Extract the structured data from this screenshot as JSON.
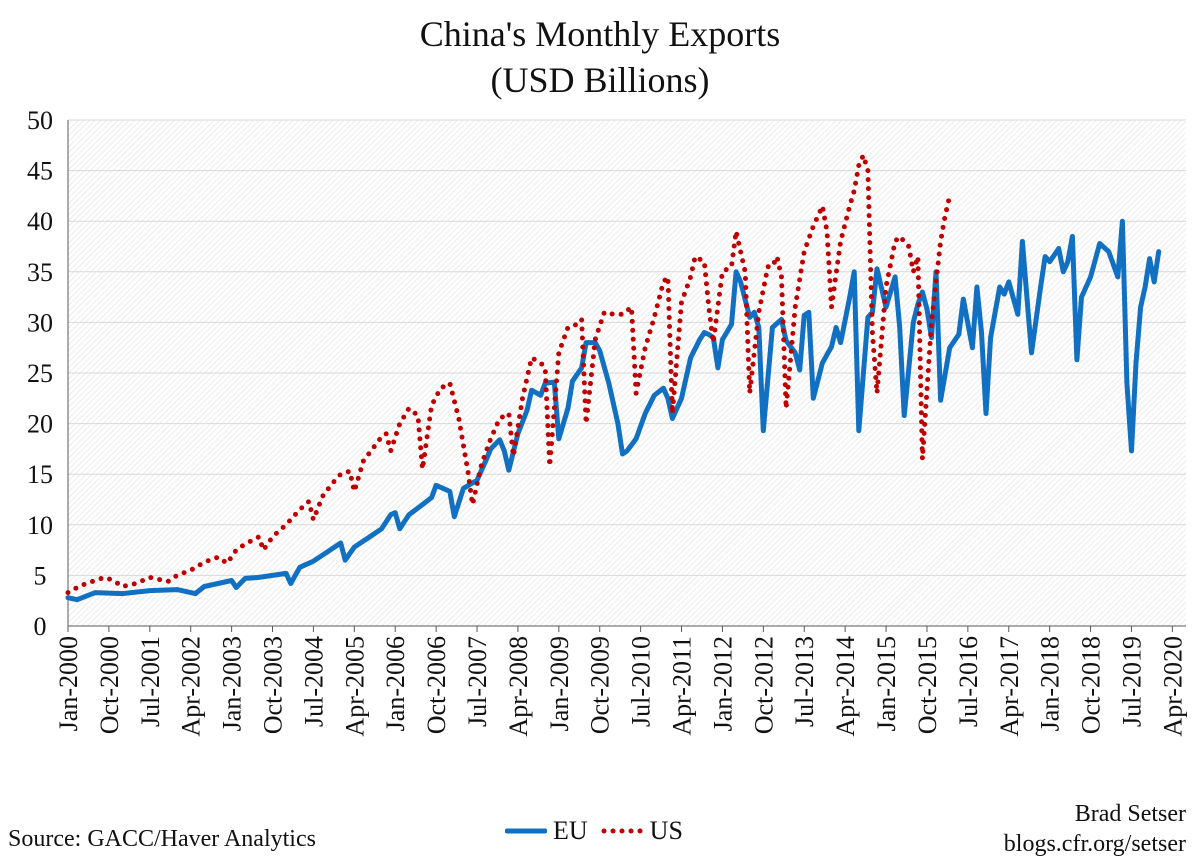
{
  "title_line1": "China's Monthly Exports",
  "title_line2": "(USD Billions)",
  "source": "Source: GACC/Haver Analytics",
  "credit_name": "Brad Setser",
  "credit_url": "blogs.cfr.org/setser",
  "colors": {
    "eu": "#1170c1",
    "us": "#c00000",
    "grid": "#d9d9d9",
    "axis": "#595959"
  },
  "chart_data": {
    "type": "line",
    "title": "China's Monthly Exports (USD Billions)",
    "ylim": [
      0,
      50
    ],
    "yticks": [
      0,
      5,
      10,
      15,
      20,
      25,
      30,
      35,
      40,
      45,
      50
    ],
    "x_start": "Jan-2000",
    "x_end": "Jul-2020",
    "n_months": 247,
    "xtick_labels": [
      "Jan-2000",
      "Oct-2000",
      "Jul-2001",
      "Apr-2002",
      "Jan-2003",
      "Oct-2003",
      "Jul-2004",
      "Apr-2005",
      "Jan-2006",
      "Oct-2006",
      "Jul-2007",
      "Apr-2008",
      "Jan-2009",
      "Oct-2009",
      "Jul-2010",
      "Apr-2011",
      "Jan-2012",
      "Oct-2012",
      "Jul-2013",
      "Apr-2014",
      "Jan-2015",
      "Oct-2015",
      "Jul-2016",
      "Apr-2017",
      "Jan-2018",
      "Oct-2018",
      "Jul-2019",
      "Apr-2020"
    ],
    "xtick_interval_months": 9,
    "legend": [
      "EU",
      "US"
    ],
    "series": [
      {
        "name": "EU",
        "style": "solid",
        "points": [
          [
            0,
            2.8
          ],
          [
            2,
            2.6
          ],
          [
            6,
            3.3
          ],
          [
            12,
            3.2
          ],
          [
            18,
            3.5
          ],
          [
            24,
            3.6
          ],
          [
            28,
            3.2
          ],
          [
            30,
            3.9
          ],
          [
            36,
            4.5
          ],
          [
            37,
            3.8
          ],
          [
            39,
            4.7
          ],
          [
            42,
            4.8
          ],
          [
            48,
            5.2
          ],
          [
            49,
            4.2
          ],
          [
            51,
            5.8
          ],
          [
            54,
            6.4
          ],
          [
            58,
            7.6
          ],
          [
            60,
            8.2
          ],
          [
            61,
            6.5
          ],
          [
            63,
            7.8
          ],
          [
            66,
            8.7
          ],
          [
            69,
            9.6
          ],
          [
            71,
            11.0
          ],
          [
            72,
            11.2
          ],
          [
            73,
            9.6
          ],
          [
            75,
            11.0
          ],
          [
            78,
            12.0
          ],
          [
            80,
            12.7
          ],
          [
            81,
            13.9
          ],
          [
            84,
            13.3
          ],
          [
            85,
            10.8
          ],
          [
            87,
            13.6
          ],
          [
            90,
            14.4
          ],
          [
            92,
            16.4
          ],
          [
            93,
            17.5
          ],
          [
            95,
            18.4
          ],
          [
            96,
            17.3
          ],
          [
            97,
            15.4
          ],
          [
            99,
            19.0
          ],
          [
            101,
            21.3
          ],
          [
            102,
            23.3
          ],
          [
            104,
            22.8
          ],
          [
            105,
            24.0
          ],
          [
            107,
            24.1
          ],
          [
            108,
            18.5
          ],
          [
            110,
            21.5
          ],
          [
            111,
            24.2
          ],
          [
            113,
            25.5
          ],
          [
            114,
            28.0
          ],
          [
            116,
            28.0
          ],
          [
            117,
            27.2
          ],
          [
            119,
            24.0
          ],
          [
            121,
            20.0
          ],
          [
            122,
            17.0
          ],
          [
            123,
            17.3
          ],
          [
            125,
            18.5
          ],
          [
            127,
            21.0
          ],
          [
            129,
            22.8
          ],
          [
            131,
            23.5
          ],
          [
            132,
            22.5
          ],
          [
            133,
            20.5
          ],
          [
            135,
            22.5
          ],
          [
            137,
            26.5
          ],
          [
            139,
            28.3
          ],
          [
            140,
            29.0
          ],
          [
            141,
            28.8
          ],
          [
            142,
            28.5
          ],
          [
            143,
            25.5
          ],
          [
            144,
            28.3
          ],
          [
            146,
            29.8
          ],
          [
            147,
            35.0
          ],
          [
            148,
            34.0
          ],
          [
            150,
            30.5
          ],
          [
            151,
            31.0
          ],
          [
            152,
            29.5
          ],
          [
            153,
            19.3
          ],
          [
            155,
            29.5
          ],
          [
            157,
            30.3
          ],
          [
            158,
            28.2
          ],
          [
            160,
            27.0
          ],
          [
            161,
            25.3
          ],
          [
            162,
            30.7
          ],
          [
            163,
            31.0
          ],
          [
            164,
            22.5
          ],
          [
            166,
            26.0
          ],
          [
            168,
            27.6
          ],
          [
            169,
            29.5
          ],
          [
            170,
            28.0
          ],
          [
            171,
            30.2
          ],
          [
            172,
            32.5
          ],
          [
            173,
            35.0
          ],
          [
            174,
            19.3
          ],
          [
            176,
            30.5
          ],
          [
            177,
            31.0
          ],
          [
            178,
            35.3
          ],
          [
            180,
            31.5
          ],
          [
            182,
            34.5
          ],
          [
            183,
            29.5
          ],
          [
            184,
            20.8
          ],
          [
            186,
            30.0
          ],
          [
            187,
            31.8
          ],
          [
            188,
            33.0
          ],
          [
            189,
            31.3
          ],
          [
            190,
            28.5
          ],
          [
            191,
            35.0
          ],
          [
            192,
            22.3
          ],
          [
            194,
            27.5
          ],
          [
            196,
            28.8
          ],
          [
            197,
            32.3
          ],
          [
            199,
            27.5
          ],
          [
            200,
            33.5
          ],
          [
            201,
            29.0
          ],
          [
            202,
            21.0
          ],
          [
            203,
            28.5
          ],
          [
            205,
            33.5
          ],
          [
            206,
            32.8
          ],
          [
            207,
            34.0
          ],
          [
            209,
            30.8
          ],
          [
            210,
            38.0
          ],
          [
            211,
            32.5
          ],
          [
            212,
            27.0
          ],
          [
            214,
            33.5
          ],
          [
            215,
            36.5
          ],
          [
            216,
            36.0
          ],
          [
            218,
            37.3
          ],
          [
            219,
            35.0
          ],
          [
            220,
            36.0
          ],
          [
            221,
            38.5
          ],
          [
            222,
            26.3
          ],
          [
            223,
            32.5
          ],
          [
            225,
            34.5
          ],
          [
            227,
            37.8
          ],
          [
            229,
            37.0
          ],
          [
            231,
            34.5
          ],
          [
            232,
            40.0
          ],
          [
            233,
            24.0
          ],
          [
            234,
            17.3
          ],
          [
            235,
            26.0
          ],
          [
            236,
            31.5
          ],
          [
            237,
            33.5
          ],
          [
            238,
            36.3
          ],
          [
            239,
            34.0
          ],
          [
            240,
            37.0
          ]
        ]
      },
      {
        "name": "US",
        "style": "dotted",
        "points": [
          [
            0,
            3.3
          ],
          [
            2,
            3.8
          ],
          [
            4,
            4.2
          ],
          [
            6,
            4.5
          ],
          [
            8,
            4.8
          ],
          [
            10,
            4.5
          ],
          [
            12,
            3.9
          ],
          [
            15,
            4.2
          ],
          [
            18,
            4.8
          ],
          [
            20,
            4.6
          ],
          [
            22,
            4.4
          ],
          [
            24,
            5.0
          ],
          [
            27,
            5.5
          ],
          [
            30,
            6.3
          ],
          [
            33,
            6.8
          ],
          [
            35,
            6.2
          ],
          [
            37,
            7.5
          ],
          [
            39,
            8.1
          ],
          [
            42,
            8.8
          ],
          [
            43,
            7.5
          ],
          [
            45,
            8.8
          ],
          [
            48,
            10.0
          ],
          [
            51,
            11.5
          ],
          [
            53,
            12.3
          ],
          [
            54,
            10.5
          ],
          [
            56,
            12.8
          ],
          [
            58,
            14.0
          ],
          [
            60,
            15.0
          ],
          [
            62,
            15.3
          ],
          [
            63,
            13.3
          ],
          [
            65,
            16.3
          ],
          [
            67,
            17.5
          ],
          [
            69,
            18.7
          ],
          [
            70,
            19.0
          ],
          [
            71,
            17.3
          ],
          [
            73,
            20.0
          ],
          [
            75,
            21.5
          ],
          [
            77,
            20.8
          ],
          [
            78,
            15.5
          ],
          [
            80,
            21.8
          ],
          [
            82,
            23.5
          ],
          [
            84,
            24.0
          ],
          [
            86,
            20.5
          ],
          [
            88,
            15.3
          ],
          [
            89,
            12.0
          ],
          [
            91,
            16.0
          ],
          [
            93,
            18.5
          ],
          [
            95,
            20.5
          ],
          [
            97,
            21.0
          ],
          [
            98,
            16.8
          ],
          [
            100,
            22.5
          ],
          [
            102,
            26.5
          ],
          [
            104,
            26.0
          ],
          [
            105,
            25.5
          ],
          [
            106,
            15.8
          ],
          [
            108,
            27.0
          ],
          [
            110,
            29.5
          ],
          [
            112,
            29.8
          ],
          [
            113,
            30.3
          ],
          [
            114,
            20.0
          ],
          [
            116,
            28.3
          ],
          [
            118,
            31.0
          ],
          [
            120,
            30.8
          ],
          [
            122,
            30.8
          ],
          [
            124,
            31.5
          ],
          [
            125,
            23.0
          ],
          [
            127,
            27.5
          ],
          [
            129,
            30.5
          ],
          [
            131,
            34.0
          ],
          [
            132,
            34.5
          ],
          [
            133,
            21.0
          ],
          [
            135,
            32.0
          ],
          [
            137,
            34.5
          ],
          [
            138,
            36.5
          ],
          [
            140,
            36.0
          ],
          [
            141,
            31.5
          ],
          [
            142,
            28.0
          ],
          [
            144,
            35.0
          ],
          [
            146,
            35.5
          ],
          [
            147,
            39.0
          ],
          [
            148,
            37.0
          ],
          [
            149,
            35.0
          ],
          [
            150,
            23.0
          ],
          [
            152,
            31.0
          ],
          [
            154,
            35.5
          ],
          [
            155,
            35.5
          ],
          [
            156,
            36.5
          ],
          [
            157,
            34.5
          ],
          [
            158,
            21.5
          ],
          [
            160,
            31.5
          ],
          [
            162,
            37.0
          ],
          [
            164,
            39.5
          ],
          [
            165,
            40.5
          ],
          [
            166,
            41.5
          ],
          [
            167,
            39.0
          ],
          [
            168,
            31.5
          ],
          [
            170,
            38.0
          ],
          [
            172,
            41.5
          ],
          [
            173,
            43.0
          ],
          [
            174,
            45.5
          ],
          [
            175,
            46.5
          ],
          [
            176,
            45.0
          ],
          [
            177,
            29.0
          ],
          [
            178,
            23.0
          ],
          [
            180,
            33.5
          ],
          [
            182,
            38.0
          ],
          [
            183,
            38.5
          ],
          [
            185,
            37.5
          ],
          [
            186,
            35.0
          ],
          [
            187,
            36.5
          ],
          [
            188,
            16.5
          ],
          [
            190,
            30.0
          ],
          [
            192,
            38.0
          ],
          [
            193,
            40.5
          ],
          [
            194,
            42.5
          ]
        ]
      }
    ]
  }
}
